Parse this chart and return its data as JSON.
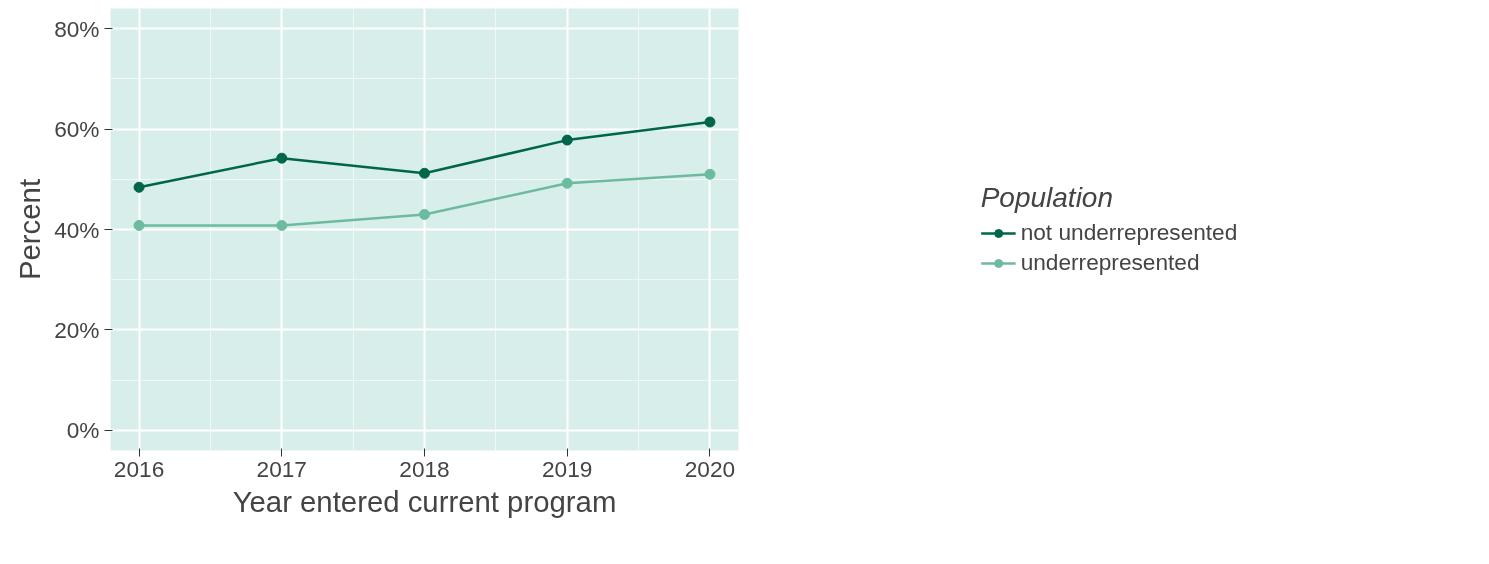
{
  "chart_data": {
    "type": "line",
    "xlabel": "Year entered current program",
    "ylabel": "Percent",
    "legend_title": "Population",
    "x": [
      2016,
      2017,
      2018,
      2019,
      2020
    ],
    "series": [
      {
        "name": "not underrepresented",
        "color": "#00664a",
        "values": [
          48.4,
          54.2,
          51.2,
          57.8,
          61.4
        ]
      },
      {
        "name": "underrepresented",
        "color": "#6dbb9e",
        "values": [
          40.8,
          40.8,
          43.0,
          49.2,
          51.0
        ]
      }
    ],
    "xlim": [
      2015.8,
      2020.2
    ],
    "xticks": [
      2016,
      2017,
      2018,
      2019,
      2020
    ],
    "ylim": [
      -4,
      84
    ],
    "yticks": [
      {
        "value": 0,
        "label": "0%"
      },
      {
        "value": 20,
        "label": "20%"
      },
      {
        "value": 40,
        "label": "40%"
      },
      {
        "value": 60,
        "label": "60%"
      },
      {
        "value": 80,
        "label": "80%"
      }
    ],
    "grid": true,
    "legend": "right",
    "marker": "circle",
    "line_style": "solid"
  }
}
